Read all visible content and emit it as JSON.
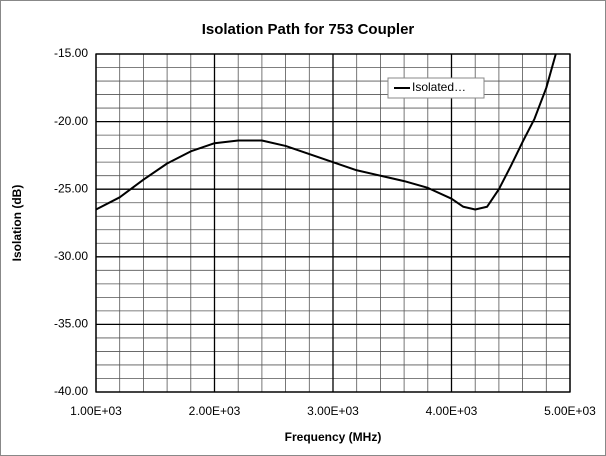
{
  "chart_data": {
    "type": "line",
    "title": "Isolation Path for 753 Coupler",
    "xlabel": "Frequency (MHz)",
    "ylabel": "Isolation (dB)",
    "series": [
      {
        "name": "Isolated…",
        "color": "#000000",
        "x": [
          1000,
          1200,
          1400,
          1600,
          1800,
          2000,
          2200,
          2400,
          2600,
          2800,
          3000,
          3200,
          3400,
          3600,
          3800,
          4000,
          4100,
          4200,
          4300,
          4400,
          4500,
          4600,
          4700,
          4800,
          4880
        ],
        "values": [
          -26.5,
          -25.6,
          -24.3,
          -23.1,
          -22.2,
          -21.6,
          -21.4,
          -21.4,
          -21.8,
          -22.4,
          -23.0,
          -23.6,
          -24.0,
          -24.4,
          -24.9,
          -25.7,
          -26.3,
          -26.5,
          -26.3,
          -25.0,
          -23.3,
          -21.5,
          -19.8,
          -17.5,
          -15.0
        ]
      }
    ],
    "xlim": [
      1000,
      5000
    ],
    "ylim": [
      -40,
      -15
    ],
    "xticks": [
      {
        "value": 1000,
        "label": "1.00E+03"
      },
      {
        "value": 2000,
        "label": "2.00E+03"
      },
      {
        "value": 3000,
        "label": "3.00E+03"
      },
      {
        "value": 4000,
        "label": "4.00E+03"
      },
      {
        "value": 5000,
        "label": "5.00E+03"
      }
    ],
    "yticks": [
      {
        "value": -40,
        "label": "-40.00"
      },
      {
        "value": -35,
        "label": "-35.00"
      },
      {
        "value": -30,
        "label": "-30.00"
      },
      {
        "value": -25,
        "label": "-25.00"
      },
      {
        "value": -20,
        "label": "-20.00"
      },
      {
        "value": -15,
        "label": "-15.00"
      }
    ],
    "minor_xticks": [
      1200,
      1400,
      1600,
      1800,
      2200,
      2400,
      2600,
      2800,
      3200,
      3400,
      3600,
      3800,
      4200,
      4400,
      4600,
      4800
    ],
    "minor_yticks": [
      -39,
      -38,
      -37,
      -36,
      -34,
      -33,
      -32,
      -31,
      -29,
      -28,
      -27,
      -26,
      -24,
      -23,
      -22,
      -21,
      -19,
      -18,
      -17,
      -16
    ],
    "grid": true,
    "legend": "upper right"
  }
}
